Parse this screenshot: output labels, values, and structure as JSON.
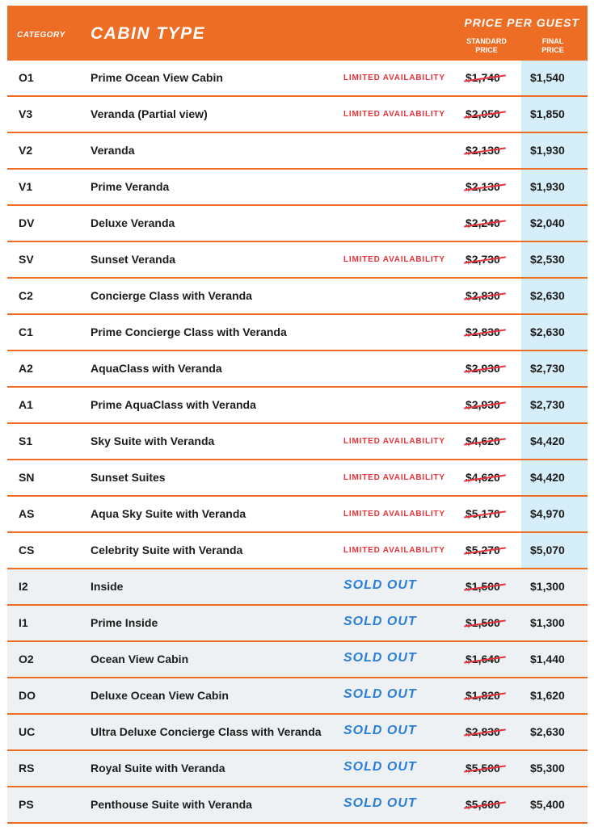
{
  "header": {
    "category": "CATEGORY",
    "cabin_type": "CABIN TYPE",
    "price_per_guest": "PRICE PER GUEST",
    "standard_price": "STANDARD\nPRICE",
    "final_price": "FINAL\nPRICE"
  },
  "colors": {
    "header_orange": "#ee6d24",
    "limited_red": "#e8323a",
    "sold_out_blue": "#2b7fd8",
    "final_column_blue": "#d6eef9"
  },
  "rows": [
    {
      "code": "O1",
      "name": "Prime Ocean View Cabin",
      "status": "LIMITED AVAILABILITY",
      "standard": "$1,740",
      "final": "$1,540"
    },
    {
      "code": "V3",
      "name": "Veranda (Partial view)",
      "status": "LIMITED AVAILABILITY",
      "standard": "$2,050",
      "final": "$1,850"
    },
    {
      "code": "V2",
      "name": "Veranda",
      "status": "",
      "standard": "$2,130",
      "final": "$1,930"
    },
    {
      "code": "V1",
      "name": "Prime Veranda",
      "status": "",
      "standard": "$2,130",
      "final": "$1,930"
    },
    {
      "code": "DV",
      "name": "Deluxe Veranda",
      "status": "",
      "standard": "$2,240",
      "final": "$2,040"
    },
    {
      "code": "SV",
      "name": "Sunset Veranda",
      "status": "LIMITED AVAILABILITY",
      "standard": "$2,730",
      "final": "$2,530"
    },
    {
      "code": "C2",
      "name": "Concierge Class with Veranda",
      "status": "",
      "standard": "$2,830",
      "final": "$2,630"
    },
    {
      "code": "C1",
      "name": "Prime Concierge Class with Veranda",
      "status": "",
      "standard": "$2,830",
      "final": "$2,630"
    },
    {
      "code": "A2",
      "name": "AquaClass with Veranda",
      "status": "",
      "standard": "$2,930",
      "final": "$2,730"
    },
    {
      "code": "A1",
      "name": "Prime AquaClass with Veranda",
      "status": "",
      "standard": "$2,930",
      "final": "$2,730"
    },
    {
      "code": "S1",
      "name": "Sky Suite with Veranda",
      "status": "LIMITED AVAILABILITY",
      "standard": "$4,620",
      "final": "$4,420"
    },
    {
      "code": "SN",
      "name": "Sunset Suites",
      "status": "LIMITED AVAILABILITY",
      "standard": "$4,620",
      "final": "$4,420"
    },
    {
      "code": "AS",
      "name": "Aqua Sky Suite with Veranda",
      "status": "LIMITED AVAILABILITY",
      "standard": "$5,170",
      "final": "$4,970"
    },
    {
      "code": "CS",
      "name": "Celebrity Suite with Veranda",
      "status": "LIMITED AVAILABILITY",
      "standard": "$5,270",
      "final": "$5,070"
    },
    {
      "code": "I2",
      "name": "Inside",
      "status": "SOLD OUT",
      "standard": "$1,500",
      "final": "$1,300"
    },
    {
      "code": "I1",
      "name": "Prime Inside",
      "status": "SOLD OUT",
      "standard": "$1,500",
      "final": "$1,300"
    },
    {
      "code": "O2",
      "name": "Ocean View Cabin",
      "status": "SOLD OUT",
      "standard": "$1,640",
      "final": "$1,440"
    },
    {
      "code": "DO",
      "name": "Deluxe Ocean View Cabin",
      "status": "SOLD OUT",
      "standard": "$1,820",
      "final": "$1,620"
    },
    {
      "code": "UC",
      "name": "Ultra Deluxe Concierge Class with Veranda",
      "status": "SOLD OUT",
      "standard": "$2,830",
      "final": "$2,630"
    },
    {
      "code": "RS",
      "name": "Royal Suite with Veranda",
      "status": "SOLD OUT",
      "standard": "$5,500",
      "final": "$5,300"
    },
    {
      "code": "PS",
      "name": "Penthouse Suite with Veranda",
      "status": "SOLD OUT",
      "standard": "$5,600",
      "final": "$5,400"
    }
  ]
}
